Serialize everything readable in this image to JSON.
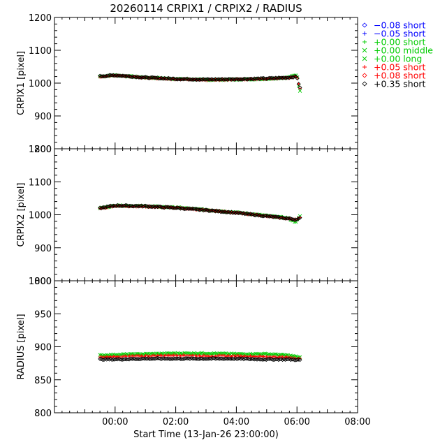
{
  "chart_data": {
    "type": "scatter",
    "title": "20260114 CRPIX1 / CRPIX2 / RADIUS",
    "xlabel": "Start Time (13-Jan-26 23:00:00)",
    "x_ticks": [
      "00:00",
      "02:00",
      "04:00",
      "06:00",
      "08:00"
    ],
    "x_range_hours": [
      -1,
      9
    ],
    "x_tick_hours": [
      1,
      3,
      5,
      7,
      9
    ],
    "legend": [
      {
        "label": "−0.08 short",
        "color": "#0000ff",
        "symbol": "diamond"
      },
      {
        "label": "−0.05 short",
        "color": "#0000ff",
        "symbol": "plus"
      },
      {
        "label": "+0.00 short",
        "color": "#00cc00",
        "symbol": "plus"
      },
      {
        "label": "+0.00 middle",
        "color": "#00cc00",
        "symbol": "cross"
      },
      {
        "label": "+0.00 long",
        "color": "#00cc00",
        "symbol": "cross"
      },
      {
        "label": "+0.05 short",
        "color": "#ff0000",
        "symbol": "plus"
      },
      {
        "label": "+0.08 short",
        "color": "#ff0000",
        "symbol": "diamond"
      },
      {
        "label": "+0.35 short",
        "color": "#000000",
        "symbol": "diamond"
      }
    ],
    "legend_position": "right",
    "panels": [
      {
        "ylabel": "CRPIX1 [pixel]",
        "ylim": [
          800,
          1200
        ],
        "y_ticks": [
          800,
          900,
          1000,
          1100,
          1200
        ],
        "series": [
          {
            "color": "#00cc00",
            "x": [
              0.5,
              1.0,
              2.0,
              3.0,
              4.0,
              5.0,
              6.0,
              6.7,
              7.0,
              7.05,
              7.1
            ],
            "y": [
              1020,
              1024,
              1017,
              1013,
              1010,
              1011,
              1013,
              1017,
              1025,
              995,
              975
            ]
          },
          {
            "color": "#ff0000",
            "x": [
              0.5,
              1.0,
              2.0,
              3.0,
              4.0,
              5.0,
              6.0,
              6.7,
              7.0,
              7.05,
              7.1
            ],
            "y": [
              1020,
              1023,
              1016,
              1012,
              1010,
              1011,
              1013,
              1016,
              1020,
              1000,
              985
            ]
          },
          {
            "color": "#000000",
            "x": [
              0.5,
              1.0,
              2.0,
              3.0,
              4.0,
              5.0,
              6.0,
              6.7,
              7.0,
              7.05,
              7.1
            ],
            "y": [
              1021,
              1024,
              1017,
              1013,
              1011,
              1012,
              1014,
              1017,
              1020,
              1000,
              985
            ]
          }
        ]
      },
      {
        "ylabel": "CRPIX2 [pixel]",
        "ylim": [
          800,
          1200
        ],
        "y_ticks": [
          800,
          900,
          1000,
          1100,
          1200
        ],
        "series": [
          {
            "color": "#00cc00",
            "x": [
              0.5,
              1.0,
              2.0,
              3.0,
              4.0,
              5.0,
              6.0,
              6.7,
              6.95,
              7.1
            ],
            "y": [
              1020,
              1028,
              1026,
              1022,
              1015,
              1007,
              997,
              990,
              978,
              995
            ]
          },
          {
            "color": "#ff0000",
            "x": [
              0.5,
              1.0,
              2.0,
              3.0,
              4.0,
              5.0,
              6.0,
              6.7,
              6.95,
              7.1
            ],
            "y": [
              1019,
              1027,
              1025,
              1021,
              1014,
              1006,
              996,
              989,
              985,
              990
            ]
          },
          {
            "color": "#000000",
            "x": [
              0.5,
              1.0,
              2.0,
              3.0,
              4.0,
              5.0,
              6.0,
              6.7,
              6.95,
              7.1
            ],
            "y": [
              1020,
              1028,
              1026,
              1021,
              1014,
              1006,
              996,
              989,
              985,
              990
            ]
          }
        ]
      },
      {
        "ylabel": "RADIUS [pixel]",
        "ylim": [
          800,
          1000
        ],
        "y_ticks": [
          800,
          850,
          900,
          950,
          1000
        ],
        "series": [
          {
            "color": "#00cc00",
            "x": [
              0.5,
              1.0,
              2.0,
              3.0,
              4.0,
              5.0,
              6.0,
              6.7,
              7.1
            ],
            "y": [
              887,
              888,
              889,
              890,
              890,
              889,
              889,
              887,
              884
            ]
          },
          {
            "color": "#ff0000",
            "x": [
              0.5,
              1.0,
              2.0,
              3.0,
              4.0,
              5.0,
              6.0,
              6.7,
              7.1
            ],
            "y": [
              884,
              885,
              886,
              887,
              886,
              886,
              885,
              884,
              882
            ]
          },
          {
            "color": "#000000",
            "x": [
              0.5,
              1.0,
              2.0,
              3.0,
              4.0,
              5.0,
              6.0,
              6.7,
              7.1
            ],
            "y": [
              881,
              881,
              882,
              882,
              882,
              882,
              881,
              881,
              880
            ]
          }
        ]
      }
    ]
  }
}
